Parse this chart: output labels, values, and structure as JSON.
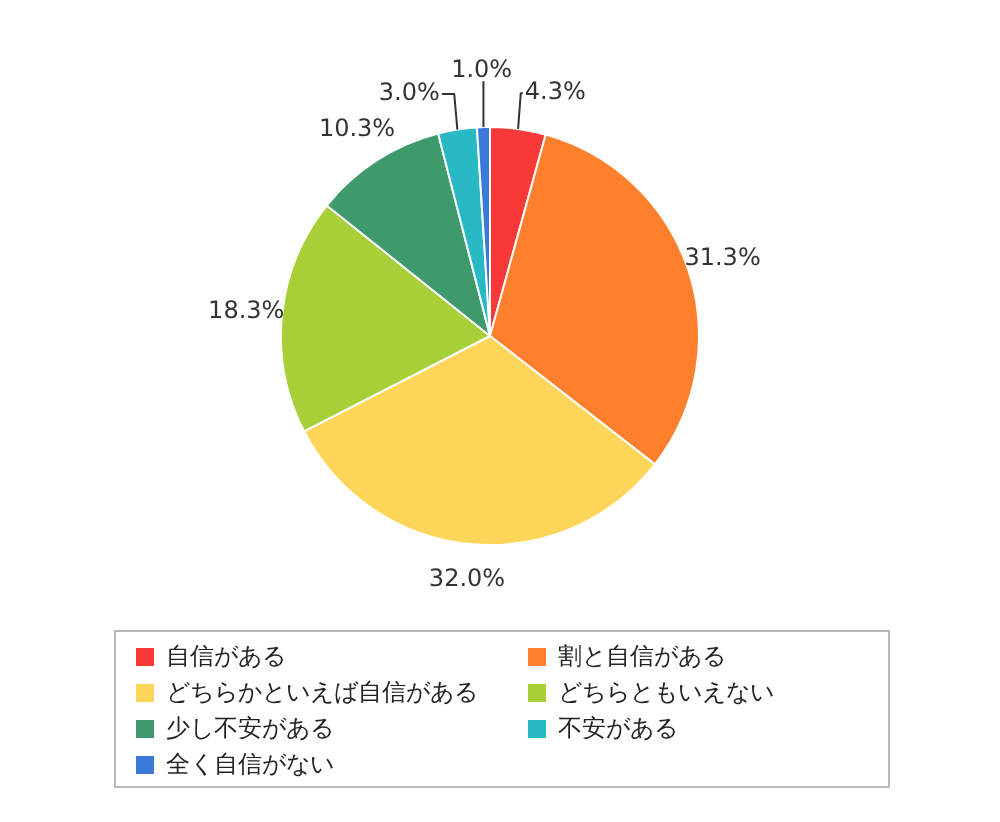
{
  "chart_data": {
    "type": "pie",
    "categories": [
      "自信がある",
      "割と自信がある",
      "どちらかといえば自信がある",
      "どちらともいえない",
      "少し不安がある",
      "不安がある",
      "全く自信がない"
    ],
    "values": [
      4.3,
      31.3,
      32.0,
      18.3,
      10.3,
      3.0,
      1.0
    ],
    "colors": [
      "#f93838",
      "#fe7f2c",
      "#ffd55a",
      "#a6cf38",
      "#3e9a6a",
      "#27b9c4",
      "#3a7ad8"
    ],
    "value_labels": [
      "4.3%",
      "31.3%",
      "32.0%",
      "18.3%",
      "10.3%",
      "3.0%",
      "1.0%"
    ],
    "legend": "bottom"
  }
}
